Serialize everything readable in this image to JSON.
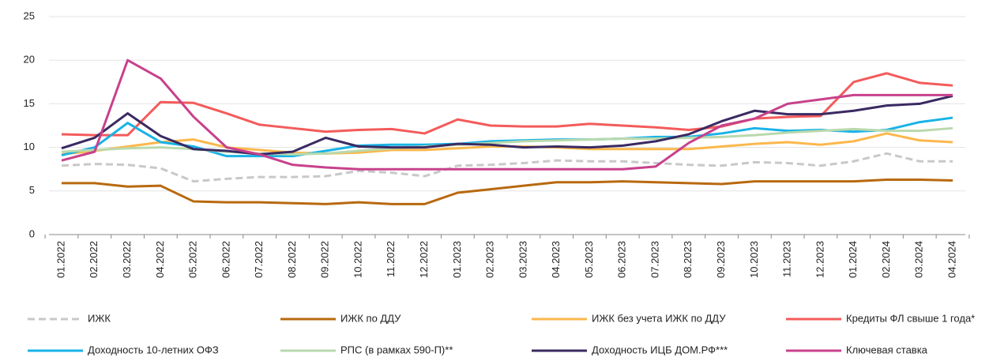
{
  "chart_data": {
    "type": "line",
    "x": [
      "01.2022",
      "02.2022",
      "03.2022",
      "04.2022",
      "05.2022",
      "06.2022",
      "07.2022",
      "08.2022",
      "09.2022",
      "10.2022",
      "11.2022",
      "12.2022",
      "01.2023",
      "02.2023",
      "03.2023",
      "04.2023",
      "05.2023",
      "06.2023",
      "07.2023",
      "08.2023",
      "09.2023",
      "10.2023",
      "11.2023",
      "12.2023",
      "01.2024",
      "02.2024",
      "03.2024",
      "04.2024"
    ],
    "ylim": [
      0,
      25
    ],
    "yticks": [
      0,
      5,
      10,
      15,
      20,
      25
    ],
    "grid": true,
    "series": [
      {
        "name": "ИЖК",
        "color": "#c8c8c8",
        "dashed": true,
        "values": [
          7.9,
          8.1,
          8.0,
          7.6,
          6.1,
          6.4,
          6.6,
          6.6,
          6.7,
          7.3,
          7.1,
          6.7,
          7.9,
          8.0,
          8.2,
          8.5,
          8.4,
          8.4,
          8.2,
          8.0,
          7.9,
          8.3,
          8.2,
          7.9,
          8.4,
          9.3,
          8.4,
          8.4
        ]
      },
      {
        "name": "ИЖК по ДДУ",
        "color": "#b8690f",
        "values": [
          5.9,
          5.9,
          5.5,
          5.6,
          3.8,
          3.7,
          3.7,
          3.6,
          3.5,
          3.7,
          3.5,
          3.5,
          4.8,
          5.2,
          5.6,
          6.0,
          6.0,
          6.1,
          6.0,
          5.9,
          5.8,
          6.1,
          6.1,
          6.1,
          6.1,
          6.3,
          6.3,
          6.2
        ]
      },
      {
        "name": "ИЖК без учета ИЖК по ДДУ",
        "color": "#fbb84c",
        "values": [
          9.2,
          9.6,
          10.1,
          10.6,
          10.9,
          10.0,
          9.7,
          9.4,
          9.3,
          9.4,
          9.7,
          9.7,
          9.9,
          10.1,
          10.1,
          10.0,
          9.8,
          9.8,
          9.8,
          9.8,
          10.1,
          10.4,
          10.6,
          10.3,
          10.7,
          11.6,
          10.8,
          10.6
        ]
      },
      {
        "name": "Кредиты ФЛ свыше 1 года*",
        "color": "#f45b5b",
        "values": [
          11.5,
          11.4,
          11.4,
          15.2,
          15.1,
          13.9,
          12.6,
          12.2,
          11.8,
          12.0,
          12.1,
          11.6,
          13.2,
          12.5,
          12.4,
          12.4,
          12.7,
          12.5,
          12.3,
          12.0,
          12.4,
          13.3,
          13.5,
          13.6,
          17.5,
          18.5,
          17.4,
          17.1
        ]
      },
      {
        "name": "Доходность 10-летних ОФЗ",
        "color": "#19b3e6",
        "values": [
          9.1,
          10.0,
          12.8,
          10.6,
          10.1,
          9.0,
          9.0,
          9.0,
          9.6,
          10.2,
          10.3,
          10.3,
          10.4,
          10.7,
          10.8,
          10.9,
          10.9,
          11.0,
          11.2,
          11.2,
          11.6,
          12.2,
          11.9,
          12.0,
          11.8,
          12.0,
          12.9,
          13.4
        ]
      },
      {
        "name": "РПС (в рамках 590-П)**",
        "color": "#b9d9ad",
        "values": [
          9.5,
          9.7,
          9.9,
          10.0,
          9.8,
          9.5,
          9.3,
          9.2,
          9.3,
          9.6,
          9.9,
          10.1,
          10.3,
          10.5,
          10.7,
          10.8,
          10.9,
          11.0,
          11.0,
          11.1,
          11.2,
          11.4,
          11.7,
          11.9,
          12.1,
          11.9,
          11.9,
          12.2
        ]
      },
      {
        "name": "Доходность ИЦБ ДОМ.РФ***",
        "color": "#3a2a62",
        "values": [
          9.9,
          11.1,
          13.9,
          11.3,
          9.8,
          9.6,
          9.2,
          9.5,
          11.1,
          10.1,
          10.0,
          10.0,
          10.4,
          10.3,
          10.0,
          10.1,
          10.0,
          10.2,
          10.7,
          11.5,
          13.0,
          14.2,
          13.8,
          13.8,
          14.2,
          14.8,
          15.0,
          15.9
        ]
      },
      {
        "name": "Ключевая ставка",
        "color": "#c8418c",
        "values": [
          8.5,
          9.5,
          20.0,
          17.9,
          13.5,
          10.0,
          9.2,
          8.0,
          7.7,
          7.5,
          7.5,
          7.5,
          7.5,
          7.5,
          7.5,
          7.5,
          7.5,
          7.5,
          7.8,
          10.5,
          12.5,
          13.3,
          15.0,
          15.5,
          16.0,
          16.0,
          16.0,
          16.0
        ]
      }
    ]
  }
}
